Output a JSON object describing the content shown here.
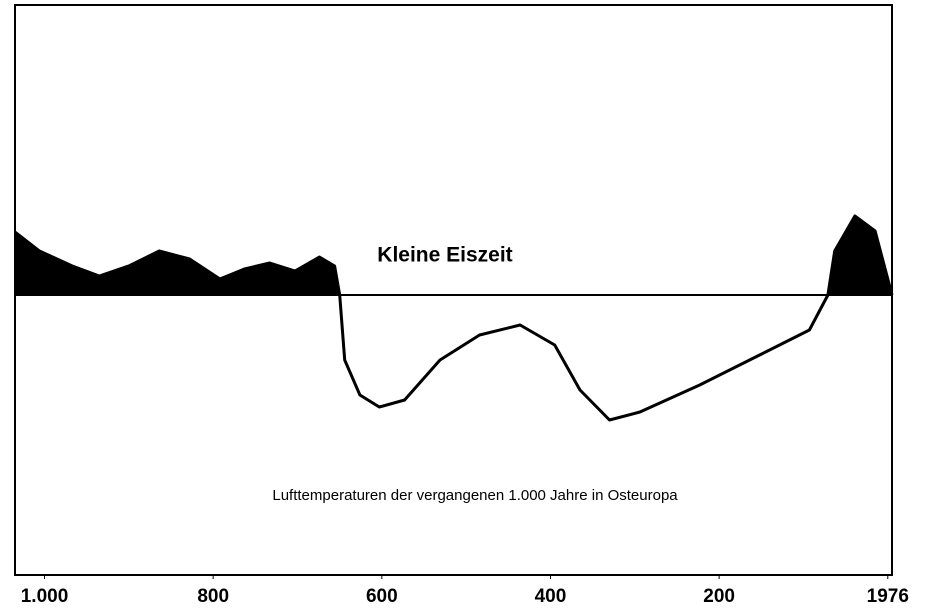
{
  "chart_data": {
    "type": "line",
    "title": "Lufttemperaturen der vergangenen 1.000 Jahre in Osteuropa",
    "annotations": [
      "Kleine Eiszeit"
    ],
    "x": [
      1035,
      1006,
      967,
      935,
      900,
      864,
      828,
      792,
      763,
      733,
      703,
      674,
      656,
      650,
      644,
      626,
      603,
      573,
      531,
      484,
      436,
      395,
      365,
      330,
      294,
      223,
      152,
      93,
      71,
      63,
      39,
      15,
      -5
    ],
    "values": [
      0.63,
      0.44,
      0.29,
      0.19,
      0.29,
      0.44,
      0.36,
      0.16,
      0.26,
      0.32,
      0.24,
      0.38,
      0.29,
      0,
      -0.65,
      -1.0,
      -1.12,
      -1.05,
      -0.65,
      -0.4,
      -0.3,
      -0.5,
      -0.95,
      -1.25,
      -1.17,
      -0.9,
      -0.6,
      -0.35,
      0,
      0.44,
      0.79,
      0.64,
      0
    ],
    "color": "#000000",
    "xlim": [
      1035,
      -5
    ],
    "xticks": [
      {
        "value": 1000,
        "label": "1.000"
      },
      800,
      600,
      400,
      200,
      {
        "value": 0,
        "label": "1976"
      }
    ],
    "ylim": [
      -2.8,
      2.9
    ]
  }
}
